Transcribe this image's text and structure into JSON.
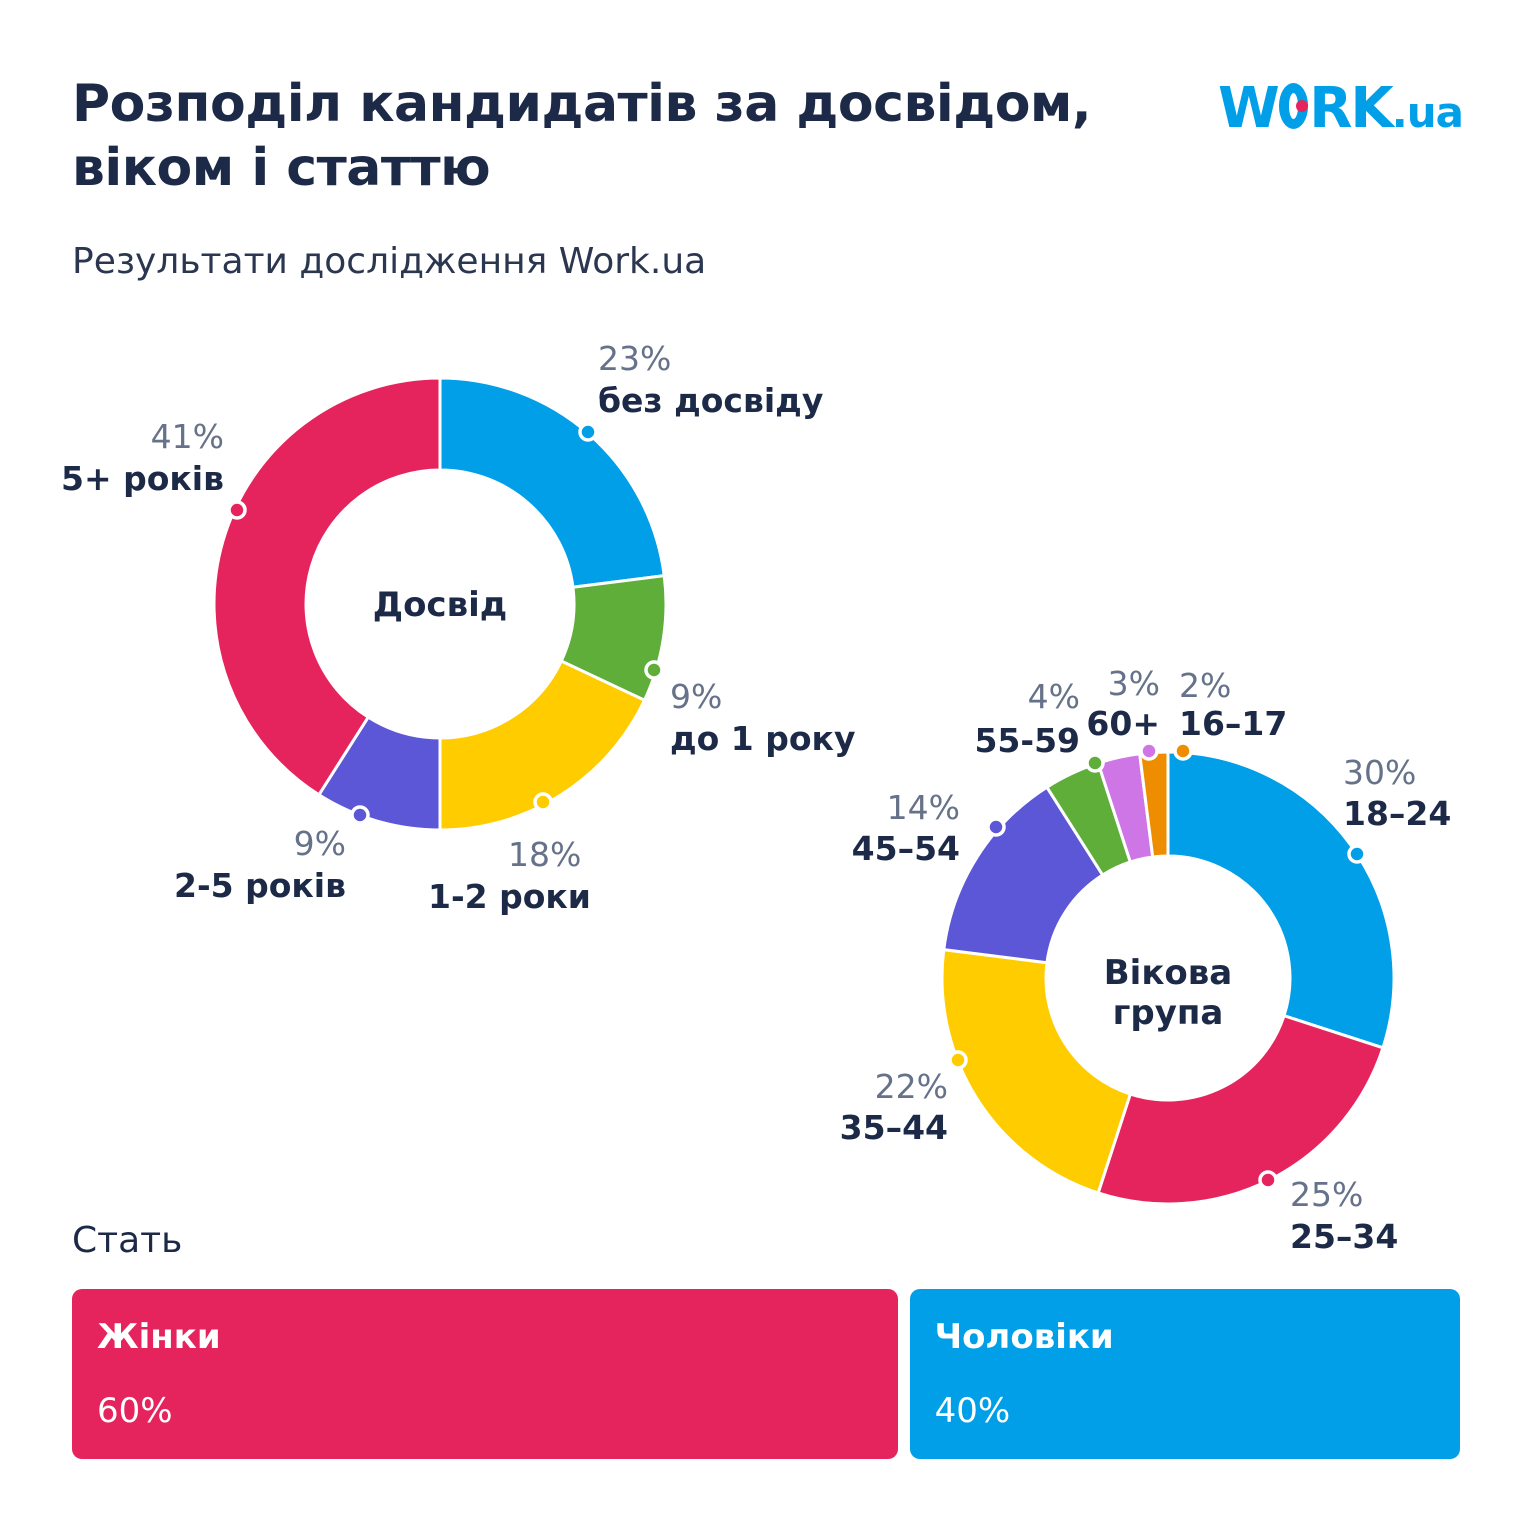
{
  "header": {
    "title": "Розподіл кандидатів за досвідом, віком і статтю",
    "subtitle": "Результати дослідження Work.ua",
    "logo_text": "WORK.ua"
  },
  "colors": {
    "blue": "#009fe8",
    "pink": "#e5245e",
    "green": "#5fae39",
    "yellow": "#ffcc00",
    "indigo": "#5b57d6",
    "violet": "#cf76e6",
    "orange": "#ef8d00",
    "text": "#1c2a47",
    "muted": "#66728a"
  },
  "chart_data": [
    {
      "type": "pie",
      "title": "Досвід",
      "donut": true,
      "slices": [
        {
          "label": "без досвіду",
          "value": 23,
          "display": "23%",
          "color": "#009fe8"
        },
        {
          "label": "до 1 року",
          "value": 9,
          "display": "9%",
          "color": "#5fae39"
        },
        {
          "label": "1-2 роки",
          "value": 18,
          "display": "18%",
          "color": "#ffcc00"
        },
        {
          "label": "2-5 років",
          "value": 9,
          "display": "9%",
          "color": "#5b57d6"
        },
        {
          "label": "5+ років",
          "value": 41,
          "display": "41%",
          "color": "#e5245e"
        }
      ]
    },
    {
      "type": "pie",
      "title": "Вікова група",
      "donut": true,
      "slices": [
        {
          "label": "18–24",
          "value": 30,
          "display": "30%",
          "color": "#009fe8"
        },
        {
          "label": "25–34",
          "value": 25,
          "display": "25%",
          "color": "#e5245e"
        },
        {
          "label": "35–44",
          "value": 22,
          "display": "22%",
          "color": "#ffcc00"
        },
        {
          "label": "45–54",
          "value": 14,
          "display": "14%",
          "color": "#5b57d6"
        },
        {
          "label": "55-59",
          "value": 4,
          "display": "4%",
          "color": "#5fae39"
        },
        {
          "label": "60+",
          "value": 3,
          "display": "3%",
          "color": "#cf76e6"
        },
        {
          "label": "16–17",
          "value": 2,
          "display": "2%",
          "color": "#ef8d00"
        }
      ]
    },
    {
      "type": "bar",
      "title": "Стать",
      "orientation": "stacked-horizontal",
      "categories": [
        "Жінки",
        "Чоловіки"
      ],
      "values": [
        60,
        40
      ],
      "display": [
        "60%",
        "40%"
      ],
      "colors": [
        "#e5245e",
        "#009fe8"
      ]
    }
  ]
}
